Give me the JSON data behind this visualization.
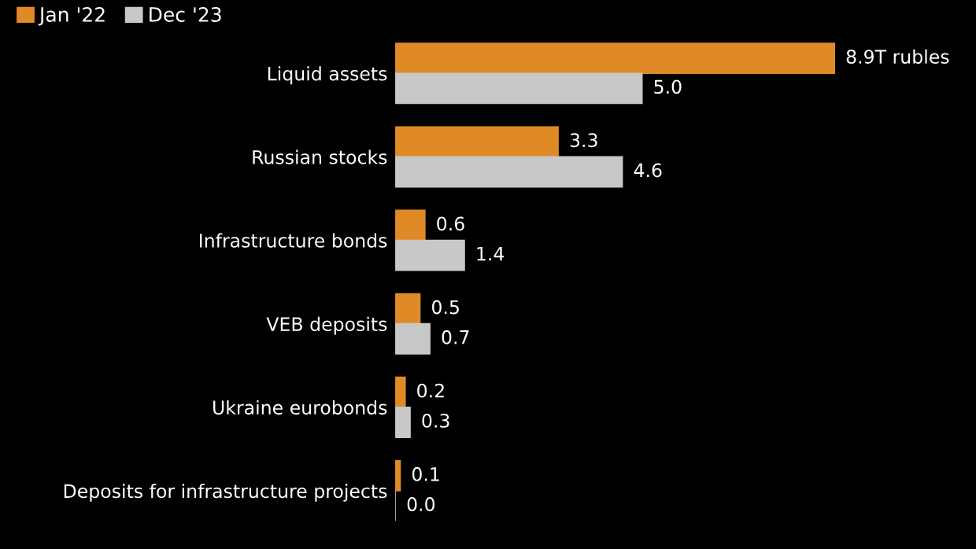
{
  "chart_data": {
    "type": "bar",
    "orientation": "horizontal",
    "categories": [
      "Liquid assets",
      "Russian stocks",
      "Infrastructure bonds",
      "VEB deposits",
      "Ukraine eurobonds",
      "Deposits for infrastructure projects"
    ],
    "series": [
      {
        "name": "Jan '22",
        "color": "#e08a27",
        "values": [
          8.9,
          3.3,
          0.6,
          0.5,
          0.2,
          0.1
        ],
        "value_labels": [
          "8.9T rubles",
          "3.3",
          "0.6",
          "0.5",
          "0.2",
          "0.1"
        ]
      },
      {
        "name": "Dec '23",
        "color": "#c8c8c8",
        "values": [
          5.0,
          4.6,
          1.4,
          0.7,
          0.3,
          0.0
        ],
        "value_labels": [
          "5.0",
          "4.6",
          "1.4",
          "0.7",
          "0.3",
          "0.0"
        ]
      }
    ],
    "legend": "top left",
    "grid": false,
    "tick_labels": "y"
  }
}
